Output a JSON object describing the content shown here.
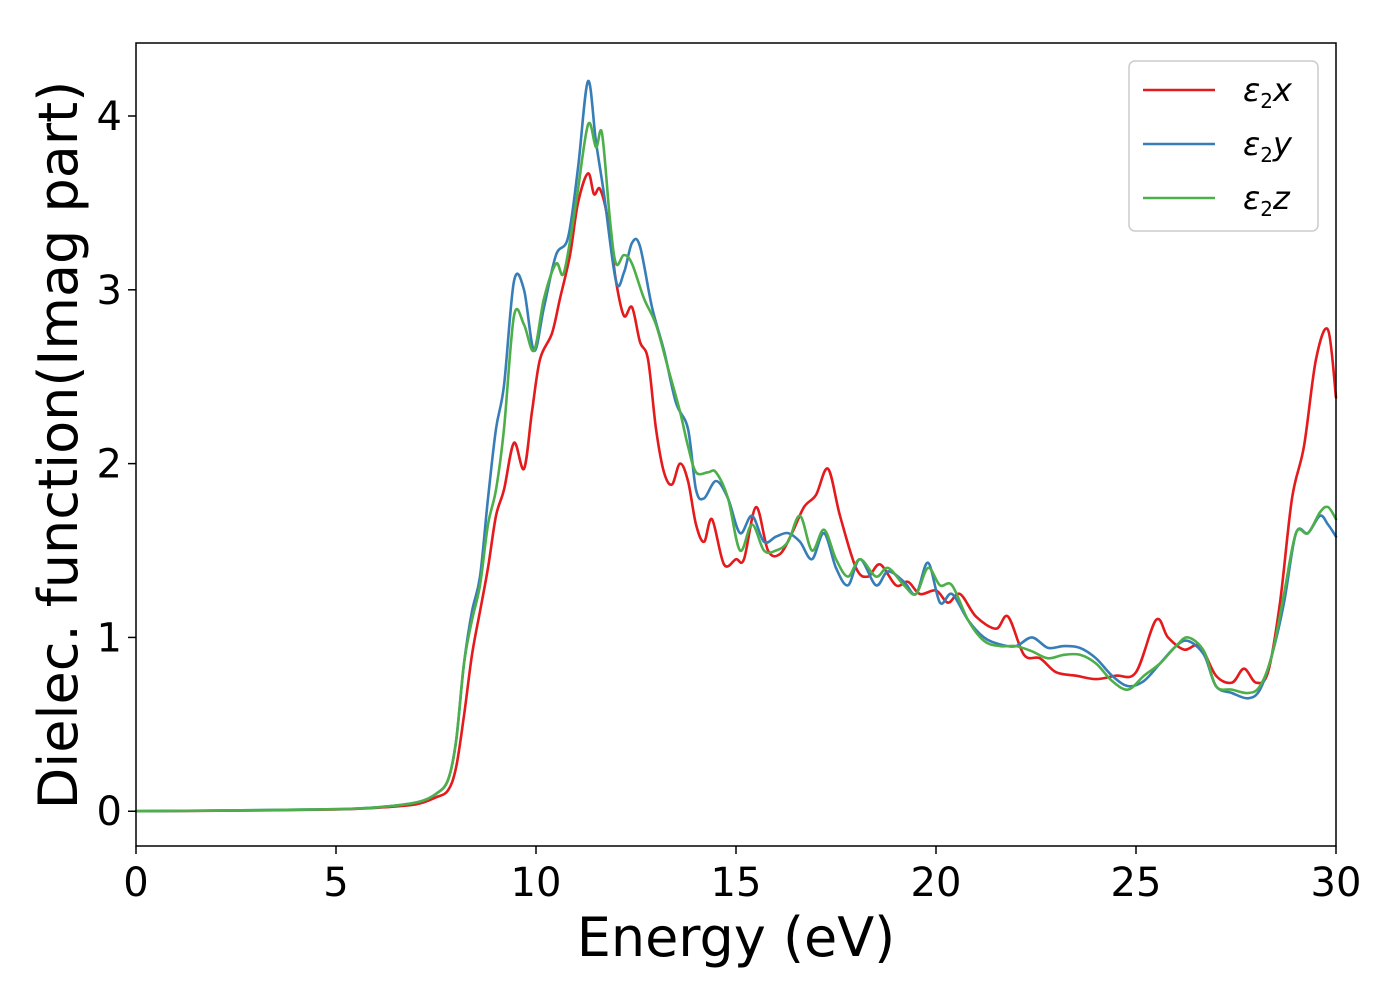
{
  "chart_data": {
    "type": "line",
    "xlabel": "Energy (eV)",
    "ylabel": "Dielec. function(Imag part)",
    "xlim": [
      0,
      30
    ],
    "ylim": [
      -0.2,
      4.42
    ],
    "xticks": [
      0,
      5,
      10,
      15,
      20,
      25,
      30
    ],
    "yticks": [
      0,
      1,
      2,
      3,
      4
    ],
    "grid": false,
    "legend_position": "top-right",
    "series": [
      {
        "name": "ε2x",
        "legend": {
          "base": "ε",
          "sub": "2",
          "suffix": "x"
        },
        "color": "#e41a1c",
        "points": [
          [
            0,
            0
          ],
          [
            3,
            0.005
          ],
          [
            5,
            0.01
          ],
          [
            6,
            0.02
          ],
          [
            7,
            0.04
          ],
          [
            7.5,
            0.08
          ],
          [
            7.8,
            0.12
          ],
          [
            8.0,
            0.25
          ],
          [
            8.2,
            0.55
          ],
          [
            8.4,
            0.9
          ],
          [
            8.6,
            1.15
          ],
          [
            8.8,
            1.4
          ],
          [
            9.0,
            1.7
          ],
          [
            9.2,
            1.85
          ],
          [
            9.45,
            2.12
          ],
          [
            9.7,
            1.97
          ],
          [
            9.9,
            2.3
          ],
          [
            10.1,
            2.6
          ],
          [
            10.4,
            2.75
          ],
          [
            10.6,
            2.95
          ],
          [
            10.85,
            3.2
          ],
          [
            11.05,
            3.5
          ],
          [
            11.3,
            3.67
          ],
          [
            11.45,
            3.55
          ],
          [
            11.6,
            3.58
          ],
          [
            11.8,
            3.4
          ],
          [
            12.0,
            3.05
          ],
          [
            12.2,
            2.85
          ],
          [
            12.4,
            2.9
          ],
          [
            12.6,
            2.7
          ],
          [
            12.8,
            2.6
          ],
          [
            13.0,
            2.2
          ],
          [
            13.2,
            1.95
          ],
          [
            13.4,
            1.88
          ],
          [
            13.6,
            2.0
          ],
          [
            13.8,
            1.9
          ],
          [
            14.0,
            1.65
          ],
          [
            14.2,
            1.55
          ],
          [
            14.4,
            1.68
          ],
          [
            14.7,
            1.42
          ],
          [
            15.0,
            1.45
          ],
          [
            15.2,
            1.45
          ],
          [
            15.5,
            1.75
          ],
          [
            15.8,
            1.5
          ],
          [
            16.1,
            1.48
          ],
          [
            16.4,
            1.6
          ],
          [
            16.7,
            1.75
          ],
          [
            17.0,
            1.82
          ],
          [
            17.3,
            1.97
          ],
          [
            17.6,
            1.7
          ],
          [
            18.0,
            1.4
          ],
          [
            18.3,
            1.35
          ],
          [
            18.6,
            1.42
          ],
          [
            19.0,
            1.3
          ],
          [
            19.3,
            1.32
          ],
          [
            19.6,
            1.25
          ],
          [
            20.0,
            1.27
          ],
          [
            20.3,
            1.2
          ],
          [
            20.6,
            1.25
          ],
          [
            21.0,
            1.12
          ],
          [
            21.5,
            1.05
          ],
          [
            21.8,
            1.12
          ],
          [
            22.2,
            0.9
          ],
          [
            22.6,
            0.88
          ],
          [
            23.0,
            0.8
          ],
          [
            23.5,
            0.78
          ],
          [
            24.0,
            0.76
          ],
          [
            24.5,
            0.78
          ],
          [
            25.0,
            0.8
          ],
          [
            25.5,
            1.1
          ],
          [
            25.8,
            1.0
          ],
          [
            26.2,
            0.93
          ],
          [
            26.6,
            0.95
          ],
          [
            27.0,
            0.78
          ],
          [
            27.4,
            0.74
          ],
          [
            27.7,
            0.82
          ],
          [
            28.0,
            0.74
          ],
          [
            28.3,
            0.8
          ],
          [
            28.6,
            1.2
          ],
          [
            28.9,
            1.8
          ],
          [
            29.2,
            2.1
          ],
          [
            29.5,
            2.6
          ],
          [
            29.8,
            2.77
          ],
          [
            30.0,
            2.38
          ]
        ]
      },
      {
        "name": "ε2y",
        "legend": {
          "base": "ε",
          "sub": "2",
          "suffix": "y"
        },
        "color": "#377eb8",
        "points": [
          [
            0,
            0
          ],
          [
            3,
            0.006
          ],
          [
            5,
            0.012
          ],
          [
            6,
            0.022
          ],
          [
            7,
            0.05
          ],
          [
            7.5,
            0.1
          ],
          [
            7.8,
            0.18
          ],
          [
            8.0,
            0.4
          ],
          [
            8.2,
            0.85
          ],
          [
            8.4,
            1.15
          ],
          [
            8.6,
            1.35
          ],
          [
            8.8,
            1.8
          ],
          [
            9.0,
            2.2
          ],
          [
            9.2,
            2.45
          ],
          [
            9.45,
            3.05
          ],
          [
            9.7,
            3.0
          ],
          [
            9.95,
            2.65
          ],
          [
            10.2,
            2.9
          ],
          [
            10.5,
            3.2
          ],
          [
            10.8,
            3.3
          ],
          [
            11.05,
            3.7
          ],
          [
            11.3,
            4.2
          ],
          [
            11.5,
            3.85
          ],
          [
            11.7,
            3.55
          ],
          [
            12.0,
            3.05
          ],
          [
            12.2,
            3.1
          ],
          [
            12.4,
            3.27
          ],
          [
            12.6,
            3.25
          ],
          [
            12.9,
            2.9
          ],
          [
            13.2,
            2.65
          ],
          [
            13.5,
            2.35
          ],
          [
            13.8,
            2.2
          ],
          [
            14.0,
            1.85
          ],
          [
            14.2,
            1.8
          ],
          [
            14.5,
            1.9
          ],
          [
            14.8,
            1.8
          ],
          [
            15.1,
            1.6
          ],
          [
            15.4,
            1.7
          ],
          [
            15.7,
            1.55
          ],
          [
            16.0,
            1.58
          ],
          [
            16.3,
            1.6
          ],
          [
            16.6,
            1.55
          ],
          [
            16.9,
            1.45
          ],
          [
            17.2,
            1.6
          ],
          [
            17.5,
            1.4
          ],
          [
            17.8,
            1.3
          ],
          [
            18.1,
            1.45
          ],
          [
            18.5,
            1.3
          ],
          [
            18.8,
            1.38
          ],
          [
            19.2,
            1.32
          ],
          [
            19.5,
            1.25
          ],
          [
            19.8,
            1.43
          ],
          [
            20.1,
            1.2
          ],
          [
            20.4,
            1.25
          ],
          [
            20.8,
            1.1
          ],
          [
            21.2,
            1.0
          ],
          [
            21.6,
            0.96
          ],
          [
            22.0,
            0.95
          ],
          [
            22.4,
            1.0
          ],
          [
            22.8,
            0.94
          ],
          [
            23.2,
            0.95
          ],
          [
            23.6,
            0.94
          ],
          [
            24.0,
            0.88
          ],
          [
            24.4,
            0.78
          ],
          [
            24.8,
            0.72
          ],
          [
            25.2,
            0.75
          ],
          [
            25.6,
            0.85
          ],
          [
            26.0,
            0.95
          ],
          [
            26.3,
            0.98
          ],
          [
            26.7,
            0.9
          ],
          [
            27.0,
            0.72
          ],
          [
            27.4,
            0.68
          ],
          [
            27.8,
            0.65
          ],
          [
            28.1,
            0.7
          ],
          [
            28.4,
            0.9
          ],
          [
            28.7,
            1.2
          ],
          [
            29.0,
            1.6
          ],
          [
            29.3,
            1.6
          ],
          [
            29.6,
            1.7
          ],
          [
            29.8,
            1.65
          ],
          [
            30.0,
            1.58
          ]
        ]
      },
      {
        "name": "ε2z",
        "legend": {
          "base": "ε",
          "sub": "2",
          "suffix": "z"
        },
        "color": "#4daf4a",
        "points": [
          [
            0,
            0
          ],
          [
            3,
            0.006
          ],
          [
            5,
            0.012
          ],
          [
            6,
            0.022
          ],
          [
            7,
            0.05
          ],
          [
            7.5,
            0.1
          ],
          [
            7.8,
            0.18
          ],
          [
            8.0,
            0.4
          ],
          [
            8.2,
            0.85
          ],
          [
            8.4,
            1.1
          ],
          [
            8.6,
            1.3
          ],
          [
            8.8,
            1.65
          ],
          [
            9.0,
            1.85
          ],
          [
            9.2,
            2.2
          ],
          [
            9.45,
            2.85
          ],
          [
            9.7,
            2.8
          ],
          [
            9.95,
            2.65
          ],
          [
            10.2,
            2.95
          ],
          [
            10.5,
            3.15
          ],
          [
            10.7,
            3.1
          ],
          [
            11.0,
            3.5
          ],
          [
            11.3,
            3.95
          ],
          [
            11.5,
            3.82
          ],
          [
            11.65,
            3.9
          ],
          [
            11.85,
            3.4
          ],
          [
            12.0,
            3.15
          ],
          [
            12.2,
            3.2
          ],
          [
            12.4,
            3.15
          ],
          [
            12.7,
            2.95
          ],
          [
            13.0,
            2.8
          ],
          [
            13.3,
            2.55
          ],
          [
            13.6,
            2.3
          ],
          [
            13.8,
            2.1
          ],
          [
            14.0,
            1.95
          ],
          [
            14.3,
            1.95
          ],
          [
            14.5,
            1.95
          ],
          [
            14.8,
            1.8
          ],
          [
            15.1,
            1.5
          ],
          [
            15.4,
            1.65
          ],
          [
            15.7,
            1.5
          ],
          [
            16.0,
            1.5
          ],
          [
            16.3,
            1.55
          ],
          [
            16.6,
            1.7
          ],
          [
            16.9,
            1.5
          ],
          [
            17.2,
            1.62
          ],
          [
            17.5,
            1.45
          ],
          [
            17.8,
            1.35
          ],
          [
            18.1,
            1.45
          ],
          [
            18.5,
            1.35
          ],
          [
            18.8,
            1.4
          ],
          [
            19.2,
            1.3
          ],
          [
            19.5,
            1.25
          ],
          [
            19.8,
            1.4
          ],
          [
            20.1,
            1.3
          ],
          [
            20.4,
            1.3
          ],
          [
            20.8,
            1.1
          ],
          [
            21.2,
            0.98
          ],
          [
            21.6,
            0.95
          ],
          [
            22.0,
            0.95
          ],
          [
            22.4,
            0.92
          ],
          [
            22.8,
            0.88
          ],
          [
            23.2,
            0.9
          ],
          [
            23.6,
            0.9
          ],
          [
            24.0,
            0.85
          ],
          [
            24.4,
            0.75
          ],
          [
            24.8,
            0.7
          ],
          [
            25.2,
            0.78
          ],
          [
            25.6,
            0.85
          ],
          [
            26.0,
            0.95
          ],
          [
            26.3,
            1.0
          ],
          [
            26.7,
            0.92
          ],
          [
            27.0,
            0.72
          ],
          [
            27.4,
            0.7
          ],
          [
            27.8,
            0.68
          ],
          [
            28.1,
            0.72
          ],
          [
            28.4,
            0.9
          ],
          [
            28.7,
            1.25
          ],
          [
            29.0,
            1.6
          ],
          [
            29.3,
            1.6
          ],
          [
            29.6,
            1.72
          ],
          [
            29.8,
            1.75
          ],
          [
            30.0,
            1.68
          ]
        ]
      }
    ]
  }
}
